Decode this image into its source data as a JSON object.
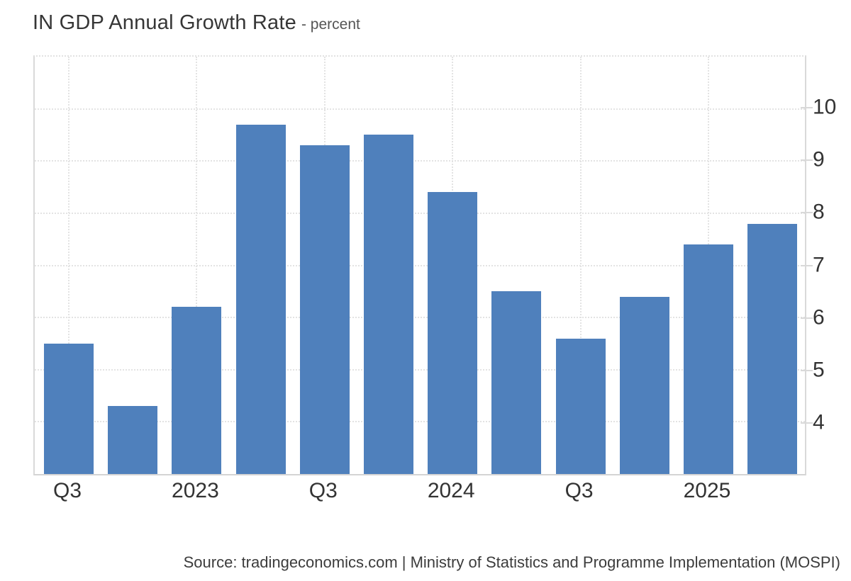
{
  "header": {
    "title": "IN GDP Annual Growth Rate",
    "subtitle": "- percent"
  },
  "footer": {
    "source": "Source: tradingeconomics.com | Ministry of Statistics and Programme Implementation (MOSPI)"
  },
  "colors": {
    "bar": "#4f80bc",
    "gridline": "#e3e3e3",
    "axis_border": "#d9d9d9",
    "title_text": "#363636",
    "subtitle_text": "#555555",
    "axis_label_text": "#333333",
    "source_text": "#3c3c3c"
  },
  "chart_data": {
    "type": "bar",
    "title": "IN GDP Annual Growth Rate",
    "ylabel_unit": "percent",
    "categories": [
      "2022-Q3",
      "2022-Q4",
      "2023-Q1",
      "2023-Q2",
      "2023-Q3",
      "2023-Q4",
      "2024-Q1",
      "2024-Q2",
      "2024-Q3",
      "2024-Q4",
      "2025-Q1",
      "2025-Q2"
    ],
    "values": [
      5.5,
      4.3,
      6.2,
      9.7,
      9.3,
      9.5,
      8.4,
      6.5,
      5.6,
      6.4,
      7.4,
      7.8
    ],
    "x_tick_labels": [
      {
        "index": 0,
        "label": "Q3"
      },
      {
        "index": 2,
        "label": "2023"
      },
      {
        "index": 4,
        "label": "Q3"
      },
      {
        "index": 6,
        "label": "2024"
      },
      {
        "index": 8,
        "label": "Q3"
      },
      {
        "index": 10,
        "label": "2025"
      }
    ],
    "y_ticks": [
      4,
      5,
      6,
      7,
      8,
      9,
      10
    ],
    "ylim": [
      3,
      11
    ],
    "grid": true,
    "legend": false,
    "bar_color": "#4f80bc"
  }
}
